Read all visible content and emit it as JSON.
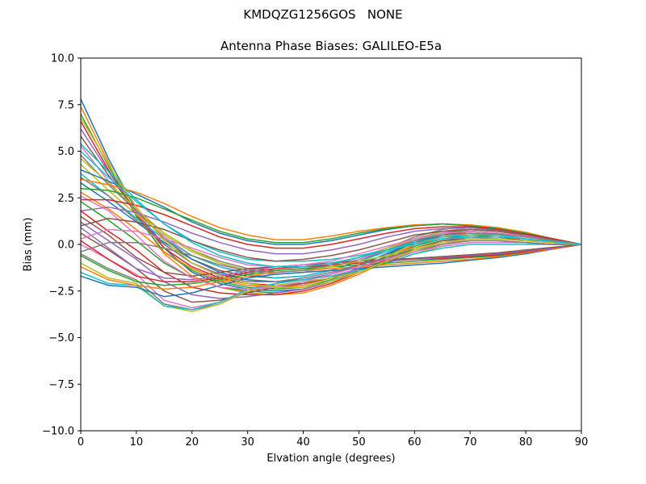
{
  "figure": {
    "suptitle": "KMDQZG1256GOS   NONE"
  },
  "chart_data": {
    "type": "line",
    "title": "Antenna Phase Biases: GALILEO-E5a",
    "xlabel": "Elvation angle (degrees)",
    "ylabel": "Bias (mm)",
    "xlim": [
      0,
      90
    ],
    "ylim": [
      -10,
      10
    ],
    "x_ticks": [
      "0",
      "10",
      "20",
      "30",
      "40",
      "50",
      "60",
      "70",
      "80",
      "90"
    ],
    "y_ticks": [
      "−10.0",
      "−7.5",
      "−5.0",
      "−2.5",
      "0.0",
      "2.5",
      "5.0",
      "7.5",
      "10.0"
    ],
    "grid": false,
    "legend": "none",
    "x": [
      0,
      5,
      10,
      15,
      20,
      25,
      30,
      35,
      40,
      45,
      50,
      55,
      60,
      65,
      70,
      75,
      80,
      85,
      90
    ],
    "colors": [
      "#1f77b4",
      "#ff7f0e",
      "#2ca02c",
      "#d62728",
      "#9467bd",
      "#8c564b",
      "#e377c2",
      "#7f7f7f",
      "#bcbd22",
      "#17becf"
    ],
    "series": [
      {
        "values": [
          7.8,
          4.6,
          1.8,
          -0.2,
          -1.5,
          -2.1,
          -2.4,
          -2.5,
          -2.4,
          -2.0,
          -1.4,
          -0.6,
          0.2,
          0.6,
          0.8,
          0.7,
          0.5,
          0.3,
          0
        ]
      },
      {
        "values": [
          7.4,
          4.4,
          1.6,
          -0.5,
          -1.7,
          -2.3,
          -2.6,
          -2.7,
          -2.6,
          -2.2,
          -1.6,
          -0.9,
          0.0,
          0.5,
          0.7,
          0.6,
          0.4,
          0.2,
          0
        ]
      },
      {
        "values": [
          7.0,
          4.2,
          1.5,
          -0.4,
          -1.4,
          -2.0,
          -2.3,
          -2.4,
          -2.3,
          -1.9,
          -1.3,
          -0.6,
          0.1,
          0.6,
          0.8,
          0.7,
          0.5,
          0.3,
          0
        ]
      },
      {
        "values": [
          6.6,
          4.0,
          1.6,
          -0.2,
          -1.2,
          -1.8,
          -2.1,
          -2.2,
          -2.1,
          -1.8,
          -1.3,
          -0.7,
          0.0,
          0.5,
          0.7,
          0.6,
          0.4,
          0.2,
          0
        ]
      },
      {
        "values": [
          6.2,
          3.9,
          1.7,
          0.0,
          -1.0,
          -1.6,
          -1.9,
          -2.0,
          -1.9,
          -1.6,
          -1.1,
          -0.5,
          0.2,
          0.6,
          0.7,
          0.6,
          0.4,
          0.2,
          0
        ]
      },
      {
        "values": [
          5.8,
          3.7,
          1.8,
          0.3,
          -0.8,
          -1.4,
          -1.7,
          -1.8,
          -1.7,
          -1.4,
          -0.9,
          -0.3,
          0.3,
          0.7,
          0.8,
          0.7,
          0.5,
          0.3,
          0
        ]
      },
      {
        "values": [
          5.3,
          3.4,
          1.7,
          0.4,
          -0.6,
          -1.2,
          -1.5,
          -1.6,
          -1.5,
          -1.2,
          -0.8,
          -0.3,
          0.3,
          0.7,
          0.9,
          0.8,
          0.6,
          0.3,
          0
        ]
      },
      {
        "values": [
          4.8,
          3.2,
          1.8,
          0.6,
          -0.3,
          -0.9,
          -1.3,
          -1.4,
          -1.3,
          -1.1,
          -0.7,
          -0.2,
          0.4,
          0.8,
          1.0,
          0.9,
          0.6,
          0.3,
          0
        ]
      },
      {
        "values": [
          4.3,
          2.9,
          1.6,
          0.5,
          -0.4,
          -1.0,
          -1.4,
          -1.5,
          -1.4,
          -1.1,
          -0.7,
          -0.2,
          0.3,
          0.7,
          0.8,
          0.7,
          0.5,
          0.2,
          0
        ]
      },
      {
        "values": [
          3.8,
          2.6,
          1.4,
          0.3,
          -0.6,
          -1.2,
          -1.6,
          -1.8,
          -1.7,
          -1.4,
          -0.9,
          -0.4,
          0.2,
          0.6,
          0.7,
          0.6,
          0.4,
          0.2,
          0
        ]
      },
      {
        "values": [
          3.3,
          2.3,
          1.2,
          0.1,
          -0.8,
          -1.5,
          -1.9,
          -2.0,
          -1.9,
          -1.6,
          -1.1,
          -0.5,
          0.1,
          0.5,
          0.6,
          0.5,
          0.3,
          0.1,
          0
        ]
      },
      {
        "values": [
          2.8,
          1.9,
          0.8,
          -0.4,
          -1.3,
          -1.9,
          -2.2,
          -2.3,
          -2.2,
          -1.8,
          -1.3,
          -0.7,
          0.0,
          0.4,
          0.6,
          0.5,
          0.3,
          0.1,
          0
        ]
      },
      {
        "values": [
          2.3,
          1.3,
          0.2,
          -1.0,
          -1.8,
          -2.3,
          -2.5,
          -2.6,
          -2.4,
          -2.0,
          -1.4,
          -0.8,
          -0.1,
          0.3,
          0.5,
          0.4,
          0.3,
          0.1,
          0
        ]
      },
      {
        "values": [
          1.8,
          0.7,
          -0.3,
          -1.5,
          -2.3,
          -2.6,
          -2.7,
          -2.7,
          -2.5,
          -2.1,
          -1.5,
          -0.9,
          -0.2,
          0.2,
          0.4,
          0.4,
          0.2,
          0.1,
          0
        ]
      },
      {
        "values": [
          1.2,
          0.2,
          -0.8,
          -2.0,
          -2.7,
          -2.9,
          -2.8,
          -2.6,
          -2.4,
          -2.0,
          -1.4,
          -0.8,
          -0.2,
          0.2,
          0.4,
          0.3,
          0.2,
          0.1,
          0
        ]
      },
      {
        "values": [
          0.6,
          -0.3,
          -1.3,
          -2.5,
          -3.1,
          -3.0,
          -2.6,
          -2.3,
          -2.1,
          -1.8,
          -1.3,
          -0.8,
          -0.2,
          0.2,
          0.3,
          0.3,
          0.2,
          0.1,
          0
        ]
      },
      {
        "values": [
          0.0,
          -0.8,
          -1.6,
          -3.0,
          -3.4,
          -3.1,
          -2.5,
          -2.1,
          -1.9,
          -1.7,
          -1.3,
          -0.8,
          -0.3,
          0.1,
          0.2,
          0.2,
          0.1,
          0.0,
          0
        ]
      },
      {
        "values": [
          -0.5,
          -1.3,
          -1.9,
          -3.2,
          -3.5,
          -3.2,
          -2.5,
          -2.2,
          -2.0,
          -1.8,
          -1.4,
          -0.9,
          -0.4,
          0.0,
          0.2,
          0.2,
          0.1,
          0.0,
          0
        ]
      },
      {
        "values": [
          -1.0,
          -1.8,
          -2.1,
          -3.3,
          -3.6,
          -3.2,
          -2.5,
          -2.2,
          -2.0,
          -1.8,
          -1.5,
          -1.0,
          -0.5,
          -0.1,
          0.1,
          0.1,
          0.1,
          0.0,
          0
        ]
      },
      {
        "values": [
          -1.5,
          -2.1,
          -2.2,
          -3.3,
          -3.5,
          -3.1,
          -2.4,
          -2.1,
          -1.9,
          -1.7,
          -1.4,
          -1.0,
          -0.5,
          -0.2,
          0.0,
          0.0,
          0.0,
          0.0,
          0
        ]
      },
      {
        "values": [
          -1.7,
          -2.2,
          -2.3,
          -2.8,
          -2.6,
          -2.2,
          -1.8,
          -1.6,
          -1.5,
          -1.4,
          -1.3,
          -1.2,
          -1.1,
          -1.0,
          -0.85,
          -0.7,
          -0.5,
          -0.25,
          0
        ]
      },
      {
        "values": [
          -1.2,
          -1.9,
          -2.2,
          -2.4,
          -2.3,
          -2.0,
          -1.7,
          -1.5,
          -1.4,
          -1.3,
          -1.2,
          -1.1,
          -1.0,
          -0.9,
          -0.8,
          -0.65,
          -0.45,
          -0.25,
          0
        ]
      },
      {
        "values": [
          -0.6,
          -1.4,
          -2.0,
          -2.2,
          -2.1,
          -1.9,
          -1.6,
          -1.4,
          -1.3,
          -1.2,
          -1.1,
          -1.0,
          -0.9,
          -0.8,
          -0.7,
          -0.6,
          -0.4,
          -0.2,
          0
        ]
      },
      {
        "values": [
          0.2,
          -0.8,
          -1.7,
          -2.0,
          -2.0,
          -1.8,
          -1.5,
          -1.3,
          -1.2,
          -1.1,
          -1.0,
          -0.9,
          -0.8,
          -0.75,
          -0.65,
          -0.55,
          -0.4,
          -0.2,
          0
        ]
      },
      {
        "values": [
          0.9,
          -0.2,
          -1.3,
          -1.8,
          -1.9,
          -1.7,
          -1.4,
          -1.2,
          -1.1,
          -1.0,
          -0.9,
          -0.85,
          -0.8,
          -0.7,
          -0.6,
          -0.5,
          -0.35,
          -0.2,
          0
        ]
      },
      {
        "values": [
          1.5,
          0.5,
          -0.7,
          -1.5,
          -1.7,
          -1.5,
          -1.3,
          -1.2,
          -1.1,
          -1.0,
          -0.9,
          -0.8,
          -0.75,
          -0.65,
          -0.55,
          -0.45,
          -0.3,
          -0.15,
          0
        ]
      },
      {
        "values": [
          2.6,
          1.8,
          0.5,
          -0.9,
          -1.8,
          -2.3,
          -2.4,
          -2.3,
          -2.0,
          -1.6,
          -1.2,
          -0.8,
          -0.4,
          -0.1,
          0.1,
          0.1,
          0.1,
          0.0,
          0
        ]
      },
      {
        "values": [
          3.6,
          2.6,
          1.3,
          0.0,
          -1.0,
          -1.7,
          -2.0,
          -2.0,
          -1.8,
          -1.5,
          -1.1,
          -0.7,
          -0.3,
          0.0,
          0.2,
          0.2,
          0.1,
          0.0,
          0
        ]
      },
      {
        "values": [
          4.6,
          3.3,
          1.9,
          0.6,
          -0.3,
          -1.0,
          -1.4,
          -1.5,
          -1.4,
          -1.2,
          -0.9,
          -0.6,
          -0.2,
          0.1,
          0.3,
          0.3,
          0.2,
          0.1,
          0
        ]
      },
      {
        "values": [
          5.4,
          3.9,
          2.4,
          1.1,
          0.2,
          -0.4,
          -0.8,
          -0.9,
          -0.9,
          -0.8,
          -0.6,
          -0.3,
          0.0,
          0.3,
          0.4,
          0.4,
          0.3,
          0.1,
          0
        ]
      },
      {
        "values": [
          4.0,
          3.4,
          2.7,
          2.0,
          1.2,
          0.6,
          0.2,
          0.0,
          0.0,
          0.2,
          0.5,
          0.8,
          1.0,
          1.1,
          1.0,
          0.8,
          0.6,
          0.3,
          0
        ]
      },
      {
        "values": [
          3.5,
          3.2,
          2.8,
          2.2,
          1.5,
          0.9,
          0.5,
          0.25,
          0.25,
          0.45,
          0.7,
          0.9,
          1.05,
          1.1,
          1.05,
          0.9,
          0.65,
          0.3,
          0
        ]
      },
      {
        "values": [
          3.0,
          2.9,
          2.5,
          1.9,
          1.3,
          0.7,
          0.3,
          0.1,
          0.1,
          0.3,
          0.6,
          0.85,
          1.0,
          1.1,
          1.0,
          0.85,
          0.6,
          0.3,
          0
        ]
      },
      {
        "values": [
          2.4,
          2.4,
          2.1,
          1.6,
          1.0,
          0.4,
          0.0,
          -0.2,
          -0.2,
          0.0,
          0.3,
          0.6,
          0.85,
          0.95,
          0.95,
          0.8,
          0.55,
          0.3,
          0
        ]
      },
      {
        "values": [
          1.8,
          2.0,
          1.7,
          1.2,
          0.6,
          0.1,
          -0.3,
          -0.5,
          -0.5,
          -0.3,
          0.0,
          0.4,
          0.7,
          0.85,
          0.9,
          0.75,
          0.5,
          0.25,
          0
        ]
      },
      {
        "values": [
          1.0,
          1.4,
          1.2,
          0.8,
          0.2,
          -0.3,
          -0.7,
          -0.9,
          -0.8,
          -0.6,
          -0.3,
          0.1,
          0.5,
          0.7,
          0.8,
          0.7,
          0.5,
          0.25,
          0
        ]
      },
      {
        "values": [
          0.3,
          0.8,
          0.7,
          0.3,
          -0.2,
          -0.7,
          -1.1,
          -1.2,
          -1.1,
          -0.9,
          -0.5,
          -0.1,
          0.3,
          0.6,
          0.7,
          0.6,
          0.45,
          0.2,
          0
        ]
      },
      {
        "values": [
          -0.4,
          0.1,
          0.1,
          -0.2,
          -0.6,
          -1.1,
          -1.4,
          -1.5,
          -1.4,
          -1.1,
          -0.7,
          -0.3,
          0.2,
          0.5,
          0.6,
          0.55,
          0.4,
          0.2,
          0
        ]
      },
      {
        "values": [
          6.8,
          4.3,
          2.0,
          0.2,
          -1.0,
          -1.7,
          -2.1,
          -2.3,
          -2.3,
          -2.0,
          -1.5,
          -0.9,
          -0.3,
          0.1,
          0.3,
          0.3,
          0.2,
          0.1,
          0
        ]
      },
      {
        "values": [
          5.0,
          3.6,
          2.3,
          1.1,
          0.1,
          -0.6,
          -1.0,
          -1.2,
          -1.2,
          -1.0,
          -0.7,
          -0.3,
          0.1,
          0.4,
          0.5,
          0.5,
          0.3,
          0.15,
          0
        ]
      }
    ]
  }
}
